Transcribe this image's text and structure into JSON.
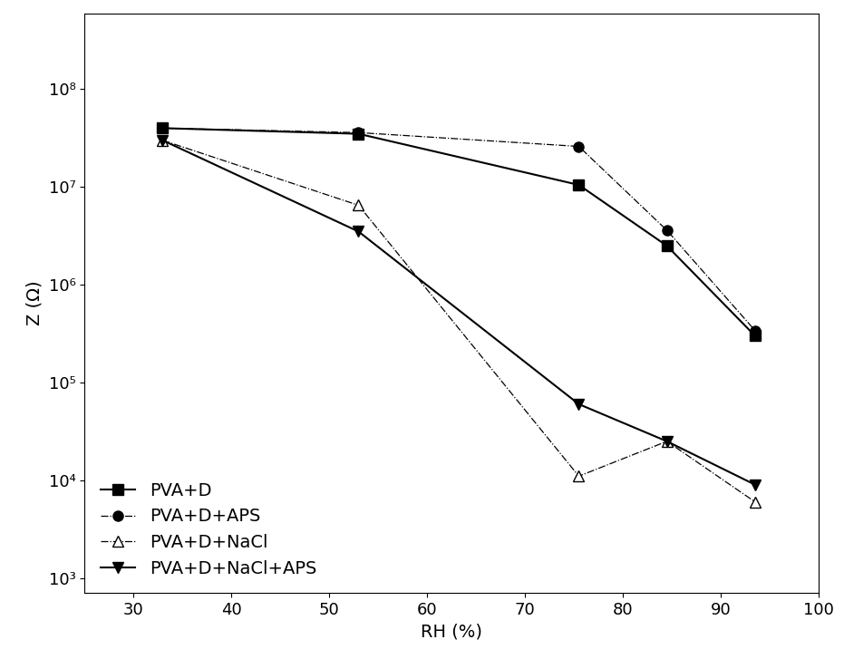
{
  "chart_data": {
    "type": "line",
    "x_label": "RH (%)",
    "y_label": "Z (Ω)",
    "log": "y",
    "xlim": [
      25,
      100
    ],
    "xticks": [
      30,
      40,
      50,
      60,
      70,
      80,
      90,
      100
    ],
    "ylim": [
      700,
      600000000
    ],
    "yticks": [
      {
        "value": 1000,
        "label": "10³"
      },
      {
        "value": 10000,
        "label": "10⁴"
      },
      {
        "value": 100000,
        "label": "10⁵"
      },
      {
        "value": 1000000,
        "label": "10⁶"
      },
      {
        "value": 10000000,
        "label": "10⁷"
      },
      {
        "value": 100000000,
        "label": "10⁸"
      }
    ],
    "legend": "lower left",
    "grid": false,
    "series": [
      {
        "name": "PVA+D",
        "color": "#000000",
        "marker": "square",
        "line_style": "solid",
        "x": [
          33,
          53,
          75.5,
          84.5,
          93.5
        ],
        "values": [
          40000000,
          35000000,
          10500000,
          2500000,
          300000
        ]
      },
      {
        "name": "PVA+D+APS",
        "color": "#000000",
        "marker": "circle",
        "line_style": "dashdot",
        "x": [
          33,
          53,
          75.5,
          84.5,
          93.5
        ],
        "values": [
          40000000,
          36000000,
          26000000,
          3600000,
          340000
        ]
      },
      {
        "name": "PVA+D+NaCl",
        "color": "#000000",
        "marker": "open_triangle",
        "line_style": "dashdot",
        "x": [
          33,
          53,
          75.5,
          84.5,
          93.5
        ],
        "values": [
          30000000,
          6500000,
          11000,
          25000,
          6000
        ]
      },
      {
        "name": "PVA+D+NaCl+APS",
        "color": "#000000",
        "marker": "triangle_down",
        "line_style": "solid",
        "x": [
          33,
          53,
          75.5,
          84.5,
          93.5
        ],
        "values": [
          30000000,
          3500000,
          60000,
          25000,
          9000
        ]
      }
    ]
  }
}
